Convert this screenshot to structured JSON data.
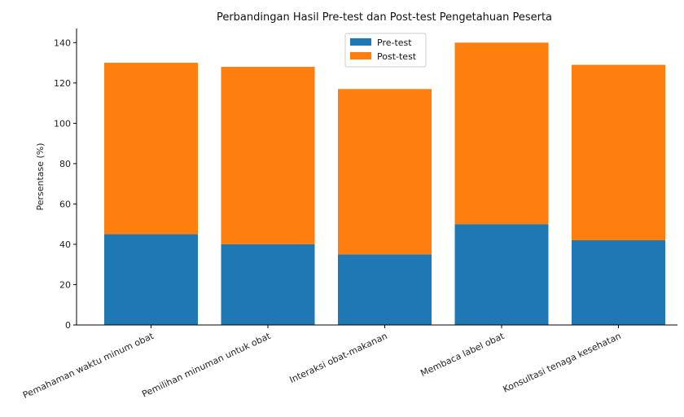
{
  "chart_data": {
    "type": "bar",
    "stacked": true,
    "title": "Perbandingan Hasil Pre-test dan Post-test Pengetahuan Peserta",
    "xlabel": "",
    "ylabel": "Persentase (%)",
    "ylim": [
      0,
      147
    ],
    "yticks": [
      0,
      20,
      40,
      60,
      80,
      100,
      120,
      140
    ],
    "categories": [
      "Pemahaman waktu minum obat",
      "Pemilihan minuman untuk obat",
      "Interaksi obat-makanan",
      "Membaca label obat",
      "Konsultasi tenaga kesehatan"
    ],
    "series": [
      {
        "name": "Pre-test",
        "color": "#1f77b4",
        "values": [
          45,
          40,
          35,
          50,
          42
        ]
      },
      {
        "name": "Post-test",
        "color": "#ff7f0e",
        "values": [
          85,
          88,
          82,
          90,
          87
        ]
      }
    ],
    "legend": "top-center",
    "grid": false
  }
}
